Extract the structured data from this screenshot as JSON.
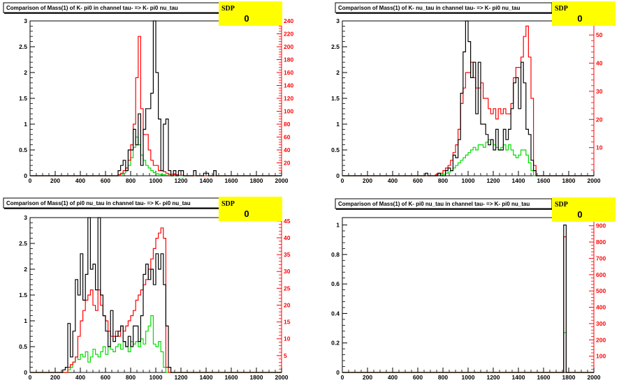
{
  "colors": {
    "black_series": "#000000",
    "red_series": "#ff0000",
    "green_series": "#00dd00",
    "stats_box": "#ffff00",
    "right_axis": "#ff0000"
  },
  "chart_data": [
    {
      "type": "histogram",
      "title": "Comparison of Mass(1) of K- pi0 in channel tau- => K- pi0 nu_tau",
      "stats_label": "SDP",
      "stats_value": "0",
      "xlim": [
        0,
        2000
      ],
      "ylim_left": [
        0,
        3
      ],
      "ylim_right": [
        0,
        240
      ],
      "x_ticks": [
        "0",
        "200",
        "400",
        "600",
        "800",
        "1000",
        "1200",
        "1400",
        "1600",
        "1800",
        "2000"
      ],
      "y_ticks_left": [
        "0",
        "0.5",
        "1",
        "1.5",
        "2",
        "2.5",
        "3"
      ],
      "y_ticks_right": [
        "20",
        "40",
        "60",
        "80",
        "100",
        "120",
        "140",
        "160",
        "180",
        "200",
        "220",
        "240"
      ],
      "bin_width": 20,
      "series": [
        {
          "color": "black",
          "axis": "left",
          "start": 700,
          "values": [
            0.1,
            0.2,
            0.3,
            0.1,
            0.5,
            0.5,
            0.9,
            0.6,
            1.2,
            0.2,
            0.9,
            1.3,
            1.3,
            1.6,
            3.0,
            2.0,
            1.1,
            0.1,
            1.0,
            1.1,
            0.1,
            0,
            0.1,
            0,
            0.1,
            0.1,
            0,
            0,
            0,
            0,
            0.1,
            0,
            0,
            0,
            0.05,
            0.05,
            0,
            0,
            0.1
          ]
        },
        {
          "color": "red",
          "axis": "left",
          "start": 700,
          "values": [
            0.02,
            0.05,
            0.1,
            0.15,
            0.3,
            0.6,
            1.0,
            1.9,
            2.7,
            1.3,
            0.8,
            0.8,
            0.5,
            0.3,
            0.2,
            0.2,
            0.1,
            0.1,
            0.08,
            0.05,
            0.03,
            0.03,
            0.02,
            0.02,
            0.01,
            0.01,
            0,
            0,
            0,
            0,
            0,
            0,
            0,
            0,
            0,
            0,
            0,
            0,
            0
          ]
        },
        {
          "color": "green",
          "axis": "left",
          "start": 700,
          "values": [
            0.01,
            0.03,
            0.05,
            0.1,
            0.2,
            0.35,
            0.55,
            0.75,
            0.6,
            0.4,
            0.3,
            0.2,
            0.15,
            0.1,
            0.06,
            0.04,
            0.03,
            0.02,
            0.02,
            0.01,
            0.01,
            0,
            0,
            0,
            0,
            0,
            0,
            0,
            0,
            0,
            0,
            0,
            0,
            0,
            0,
            0,
            0,
            0,
            0
          ]
        }
      ]
    },
    {
      "type": "histogram",
      "title": "Comparison of Mass(1) of K- nu_tau in channel tau- => K- pi0 nu_tau",
      "stats_label": "SDP",
      "stats_value": "0",
      "xlim": [
        0,
        2000
      ],
      "ylim_left": [
        0,
        3
      ],
      "ylim_right": [
        0,
        55
      ],
      "x_ticks": [
        "0",
        "200",
        "400",
        "600",
        "800",
        "1000",
        "1200",
        "1400",
        "1600",
        "1800",
        "2000"
      ],
      "y_ticks_left": [
        "0",
        "0.5",
        "1",
        "1.5",
        "2",
        "2.5",
        "3"
      ],
      "y_ticks_right": [
        "10",
        "20",
        "30",
        "40",
        "50"
      ],
      "bin_width": 20,
      "series": [
        {
          "color": "black",
          "axis": "left",
          "start": 580,
          "values": [
            0,
            0,
            0,
            0,
            0.05,
            0,
            0,
            0,
            0,
            0.05,
            0,
            0,
            0.1,
            0.15,
            0.1,
            0.4,
            0.35,
            0.7,
            1.6,
            2.4,
            3.0,
            2.6,
            1.9,
            2.2,
            1.2,
            2.2,
            1.0,
            1.0,
            0.8,
            0.6,
            0.7,
            0.5,
            0.9,
            0.5,
            0.5,
            0.9,
            0.7,
            0.9,
            1.3,
            1.8,
            1.9,
            1.3,
            2.2,
            1.8,
            0.9,
            0.8,
            0.3,
            0.1
          ]
        },
        {
          "color": "red",
          "axis": "left",
          "start": 580,
          "values": [
            0,
            0,
            0,
            0,
            0,
            0,
            0,
            0,
            0.02,
            0.05,
            0.05,
            0.1,
            0.15,
            0.2,
            0.3,
            0.45,
            0.6,
            0.9,
            1.4,
            1.7,
            2.0,
            2.0,
            2.2,
            1.9,
            1.7,
            1.7,
            1.8,
            1.5,
            1.5,
            1.3,
            1.2,
            1.3,
            1.1,
            1.3,
            1.2,
            1.3,
            1.2,
            1.2,
            1.4,
            1.9,
            2.1,
            2.1,
            2.3,
            2.7,
            2.9,
            2.3,
            1.5,
            0.2
          ]
        },
        {
          "color": "green",
          "axis": "left",
          "start": 580,
          "values": [
            0,
            0,
            0,
            0,
            0,
            0,
            0,
            0,
            0,
            0.01,
            0.02,
            0.03,
            0.05,
            0.07,
            0.1,
            0.15,
            0.2,
            0.25,
            0.3,
            0.35,
            0.4,
            0.45,
            0.5,
            0.55,
            0.5,
            0.6,
            0.6,
            0.55,
            0.65,
            0.7,
            0.7,
            0.6,
            0.55,
            0.5,
            0.55,
            0.6,
            0.5,
            0.6,
            0.5,
            0.4,
            0.35,
            0.4,
            0.5,
            0.5,
            0.4,
            0.25,
            0.1,
            0
          ]
        }
      ]
    },
    {
      "type": "histogram",
      "title": "Comparison of Mass(1) of pi0 nu_tau in channel tau- => K- pi0 nu_tau",
      "stats_label": "SDP",
      "stats_value": "0",
      "xlim": [
        0,
        2000
      ],
      "ylim_left": [
        0,
        3
      ],
      "ylim_right": [
        0,
        46
      ],
      "x_ticks": [
        "0",
        "200",
        "400",
        "600",
        "800",
        "1000",
        "1200",
        "1400",
        "1600",
        "1800",
        "2000"
      ],
      "y_ticks_left": [
        "0",
        "0.5",
        "1",
        "1.5",
        "2",
        "2.5",
        "3"
      ],
      "y_ticks_right": [
        "5",
        "10",
        "15",
        "20",
        "25",
        "30",
        "35",
        "40",
        "45"
      ],
      "bin_width": 20,
      "series": [
        {
          "color": "black",
          "axis": "left",
          "start": 260,
          "values": [
            0.05,
            0.1,
            0.95,
            0.3,
            0.8,
            1.8,
            1.5,
            2.3,
            1.4,
            1.9,
            3.0,
            2.0,
            2.1,
            1.6,
            3.0,
            1.5,
            1.1,
            0.8,
            0.5,
            1.2,
            0.6,
            0.7,
            0.8,
            0.9,
            0.6,
            0.5,
            0.7,
            0.5,
            0.9,
            0.9,
            0.6,
            1.1,
            1.9,
            2.1,
            1.8,
            2.0,
            1.7,
            2.3,
            2.0,
            2.3,
            1.7,
            0.9,
            0.1
          ]
        },
        {
          "color": "red",
          "axis": "left",
          "start": 260,
          "values": [
            0,
            0,
            0.1,
            0.15,
            0.2,
            0.3,
            0.7,
            1.0,
            1.2,
            1.4,
            1.5,
            1.6,
            1.3,
            1.2,
            1.6,
            1.3,
            1.1,
            1.0,
            0.8,
            0.7,
            0.7,
            0.8,
            0.7,
            0.9,
            0.8,
            0.9,
            1.0,
            1.1,
            1.2,
            1.4,
            1.5,
            1.6,
            1.7,
            1.8,
            2.0,
            2.2,
            2.4,
            2.6,
            2.7,
            2.8,
            2.6,
            0.1
          ]
        },
        {
          "color": "green",
          "axis": "left",
          "start": 260,
          "values": [
            0,
            0,
            0.05,
            0.1,
            0.2,
            0.3,
            0.25,
            0.35,
            0.3,
            0.4,
            0.2,
            0.3,
            0.45,
            0.35,
            0.3,
            0.4,
            0.5,
            0.35,
            0.5,
            0.45,
            0.4,
            0.5,
            0.55,
            0.45,
            0.6,
            0.5,
            0.4,
            0.6,
            0.55,
            0.6,
            0.5,
            0.65,
            0.55,
            0.8,
            0.9,
            1.1,
            0.55,
            0.5,
            0.6,
            0.4,
            0.1,
            0
          ]
        }
      ]
    },
    {
      "type": "histogram",
      "title": "Comparison of Mass(1) of K- pi0 nu_tau in channel tau- => K- pi0 nu_tau",
      "stats_label": "SDP",
      "stats_value": "0",
      "xlim": [
        0,
        2000
      ],
      "ylim_left": [
        0,
        1.05
      ],
      "ylim_right": [
        0,
        950
      ],
      "x_ticks": [
        "0",
        "200",
        "400",
        "600",
        "800",
        "1000",
        "1200",
        "1400",
        "1600",
        "1800",
        "2000"
      ],
      "y_ticks_left": [
        "0",
        "0.2",
        "0.4",
        "0.6",
        "0.8",
        "1"
      ],
      "y_ticks_right": [
        "100",
        "200",
        "300",
        "400",
        "500",
        "600",
        "700",
        "800",
        "900"
      ],
      "bin_width": 20,
      "series": [
        {
          "color": "black",
          "axis": "left",
          "start": 1760,
          "values": [
            1.0
          ]
        },
        {
          "color": "red",
          "axis": "left",
          "start": 1760,
          "values": [
            0.92
          ]
        },
        {
          "color": "green",
          "axis": "left",
          "start": 1760,
          "values": [
            0.27
          ]
        }
      ]
    }
  ]
}
